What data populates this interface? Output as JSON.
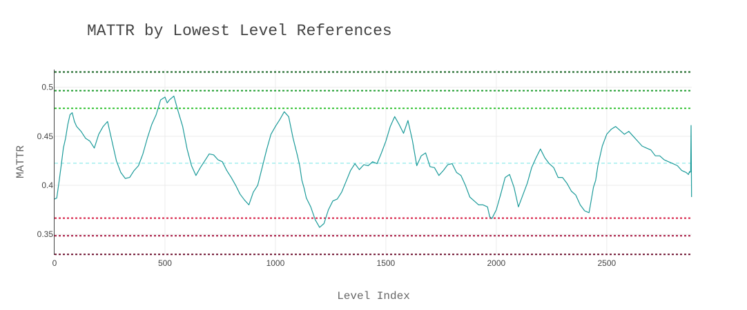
{
  "chart_data": {
    "type": "line",
    "title": "MATTR by Lowest Level References",
    "xlabel": "Level Index",
    "ylabel": "MATTR",
    "xlim": [
      0,
      2885
    ],
    "ylim": [
      0.329,
      0.518
    ],
    "x_ticks": [
      0,
      500,
      1000,
      1500,
      2000,
      2500
    ],
    "y_ticks": [
      0.35,
      0.4,
      0.45,
      0.5
    ],
    "x_tick_labels": [
      "0",
      "500",
      "1000",
      "1500",
      "2000",
      "2500"
    ],
    "y_tick_labels": [
      "0.35",
      "0.4",
      "0.45",
      "0.5"
    ],
    "grid": true,
    "series": [
      {
        "color": "#1a9a99",
        "x": [
          0,
          10,
          20,
          30,
          40,
          50,
          60,
          70,
          80,
          90,
          100,
          120,
          140,
          160,
          180,
          200,
          220,
          240,
          260,
          280,
          300,
          320,
          340,
          360,
          380,
          400,
          420,
          440,
          460,
          480,
          500,
          510,
          520,
          540,
          560,
          580,
          600,
          620,
          640,
          660,
          680,
          700,
          720,
          740,
          760,
          780,
          800,
          820,
          840,
          860,
          880,
          900,
          920,
          940,
          960,
          980,
          1000,
          1020,
          1040,
          1060,
          1080,
          1100,
          1110,
          1120,
          1130,
          1140,
          1160,
          1180,
          1200,
          1220,
          1240,
          1260,
          1280,
          1300,
          1320,
          1340,
          1360,
          1380,
          1400,
          1420,
          1440,
          1460,
          1480,
          1500,
          1520,
          1540,
          1560,
          1580,
          1600,
          1620,
          1640,
          1660,
          1680,
          1700,
          1720,
          1740,
          1760,
          1780,
          1800,
          1820,
          1840,
          1860,
          1880,
          1900,
          1920,
          1940,
          1960,
          1970,
          1980,
          2000,
          2020,
          2040,
          2060,
          2080,
          2100,
          2120,
          2140,
          2160,
          2180,
          2200,
          2220,
          2240,
          2260,
          2280,
          2300,
          2320,
          2340,
          2360,
          2380,
          2400,
          2420,
          2440,
          2450,
          2460,
          2480,
          2500,
          2520,
          2540,
          2560,
          2580,
          2600,
          2620,
          2640,
          2660,
          2680,
          2700,
          2720,
          2740,
          2760,
          2780,
          2800,
          2820,
          2840,
          2860,
          2870,
          2875,
          2876,
          2880,
          2882,
          2884
        ],
        "y": [
          0.386,
          0.387,
          0.403,
          0.42,
          0.438,
          0.448,
          0.462,
          0.472,
          0.474,
          0.465,
          0.46,
          0.455,
          0.448,
          0.445,
          0.438,
          0.452,
          0.46,
          0.465,
          0.445,
          0.425,
          0.413,
          0.407,
          0.408,
          0.415,
          0.42,
          0.432,
          0.448,
          0.462,
          0.472,
          0.487,
          0.49,
          0.484,
          0.487,
          0.491,
          0.475,
          0.46,
          0.437,
          0.42,
          0.41,
          0.418,
          0.425,
          0.432,
          0.431,
          0.426,
          0.424,
          0.415,
          0.408,
          0.4,
          0.391,
          0.385,
          0.38,
          0.393,
          0.4,
          0.418,
          0.436,
          0.452,
          0.46,
          0.467,
          0.475,
          0.47,
          0.448,
          0.43,
          0.42,
          0.405,
          0.397,
          0.387,
          0.378,
          0.365,
          0.357,
          0.361,
          0.375,
          0.384,
          0.386,
          0.393,
          0.404,
          0.415,
          0.422,
          0.416,
          0.421,
          0.42,
          0.424,
          0.422,
          0.433,
          0.445,
          0.46,
          0.47,
          0.462,
          0.453,
          0.466,
          0.446,
          0.42,
          0.43,
          0.433,
          0.419,
          0.418,
          0.41,
          0.415,
          0.421,
          0.422,
          0.413,
          0.41,
          0.4,
          0.388,
          0.384,
          0.38,
          0.38,
          0.378,
          0.368,
          0.366,
          0.375,
          0.391,
          0.408,
          0.411,
          0.398,
          0.378,
          0.39,
          0.402,
          0.418,
          0.428,
          0.437,
          0.428,
          0.422,
          0.418,
          0.408,
          0.408,
          0.402,
          0.394,
          0.39,
          0.38,
          0.374,
          0.372,
          0.398,
          0.405,
          0.42,
          0.44,
          0.452,
          0.457,
          0.46,
          0.456,
          0.452,
          0.455,
          0.45,
          0.445,
          0.44,
          0.438,
          0.436,
          0.43,
          0.43,
          0.426,
          0.424,
          0.422,
          0.42,
          0.415,
          0.413,
          0.411,
          0.414,
          0.413,
          0.414,
          0.461,
          0.388
        ]
      }
    ],
    "reference_lines": [
      {
        "y": 0.5155,
        "color": "#0d5e1a",
        "dash": "dot"
      },
      {
        "y": 0.4965,
        "color": "#1a9a2a",
        "dash": "dot"
      },
      {
        "y": 0.4785,
        "color": "#2cc02c",
        "dash": "dot"
      },
      {
        "y": 0.4225,
        "color": "#80e8e8",
        "dash": "dash"
      },
      {
        "y": 0.3665,
        "color": "#d4143c",
        "dash": "dot"
      },
      {
        "y": 0.3485,
        "color": "#a4103c",
        "dash": "dot"
      },
      {
        "y": 0.3295,
        "color": "#6a0a2a",
        "dash": "dot"
      }
    ]
  }
}
